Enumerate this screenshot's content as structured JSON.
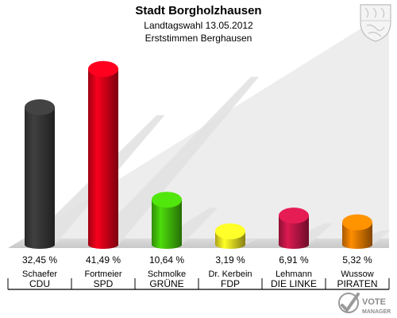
{
  "header": {
    "title": "Stadt Borgholzhausen",
    "subtitle": "Landtagswahl 13.05.2012",
    "subtitle2": "Erststimmen Berghausen"
  },
  "chart_data": {
    "type": "bar",
    "title": "Stadt Borgholzhausen",
    "subtitle": "Landtagswahl 13.05.2012 / Erststimmen Berghausen",
    "unit": "%",
    "ylim": [
      0,
      45
    ],
    "grid": false,
    "legend": "none",
    "bars": [
      {
        "candidate": "Schaefer",
        "party": "CDU",
        "value": 32.45,
        "label": "32,45 %",
        "color": "#3a3a3a"
      },
      {
        "candidate": "Fortmeier",
        "party": "SPD",
        "value": 41.49,
        "label": "41,49 %",
        "color": "#e2001a"
      },
      {
        "candidate": "Schmolke",
        "party": "GRÜNE",
        "value": 10.64,
        "label": "10,64 %",
        "color": "#46c80a"
      },
      {
        "candidate": "Dr. Kerbein",
        "party": "FDP",
        "value": 3.19,
        "label": "3,19 %",
        "color": "#f8e824"
      },
      {
        "candidate": "Lehmann",
        "party": "DIE LINKE",
        "value": 6.91,
        "label": "6,91 %",
        "color": "#c8184a"
      },
      {
        "candidate": "Wussow",
        "party": "PIRATEN",
        "value": 5.32,
        "label": "5,32 %",
        "color": "#f08000"
      }
    ]
  },
  "branding": {
    "logo_text_1": "VOTE",
    "logo_text_2": "MANAGER",
    "coat_of_arms_icon": "nrw-coat-of-arms-icon"
  }
}
